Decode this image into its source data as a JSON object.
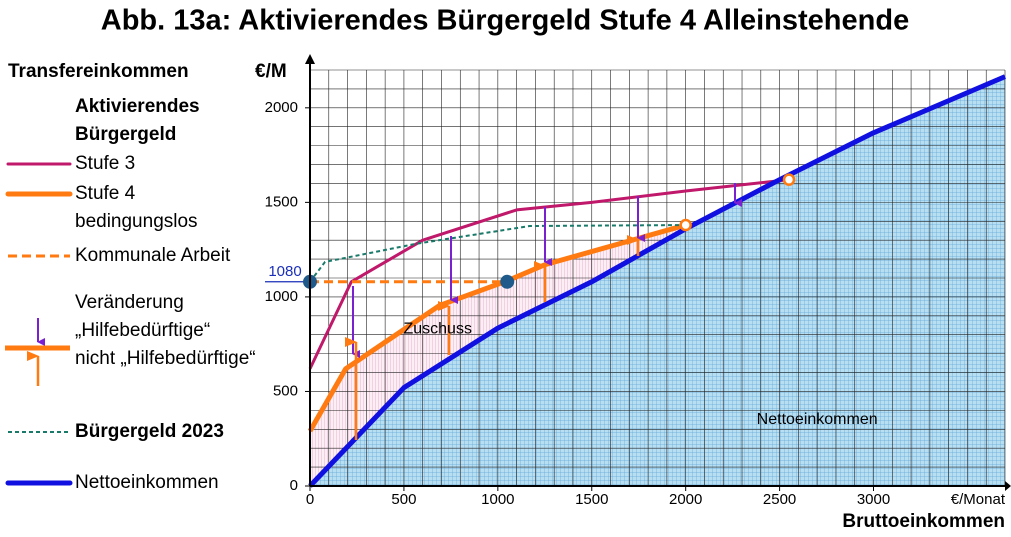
{
  "chart_data": {
    "type": "line",
    "title": "Abb. 13a:  Aktivierendes Bürgergeld Stufe 4   Alleinstehende",
    "y_label": "Transfereinkommen",
    "y_unit": "€/M",
    "x_label": "Bruttoeinkommen",
    "x_unit": "€/Monat",
    "legend_title": "Aktivierendes\nBürgergeld",
    "change_legend": "Veränderung\n„Hilfebedürftige“\nnicht „Hilfebedürftige“",
    "xlim": [
      0,
      3700
    ],
    "ylim": [
      0,
      2200
    ],
    "xticks": [
      0,
      500,
      1000,
      1500,
      2000,
      2500,
      3000
    ],
    "yticks": [
      0,
      500,
      1000,
      1500,
      2000
    ],
    "grid": true,
    "grid_step": 100,
    "reference_line": {
      "value": 1080,
      "label": "1080",
      "color": "#1a2fb8"
    },
    "series": [
      {
        "name": "Stufe 3",
        "color": "#c0186a",
        "line_width": 3,
        "dash": null,
        "x": [
          0,
          220,
          600,
          1100,
          1500,
          2000,
          2550
        ],
        "values": [
          620,
          1080,
          1300,
          1460,
          1500,
          1560,
          1620
        ]
      },
      {
        "name": "Stufe 4\nbedingungslos",
        "color": "#ff7a10",
        "line_width": 5,
        "dash": null,
        "x": [
          0,
          190,
          690,
          1050,
          1250,
          2000
        ],
        "values": [
          290,
          620,
          955,
          1085,
          1170,
          1380
        ]
      },
      {
        "name": "Kommunale Arbeit",
        "color": "#ff7a10",
        "line_width": 3,
        "dash": "dashed",
        "x": [
          0,
          1050
        ],
        "values": [
          1080,
          1080
        ]
      },
      {
        "name": "Bürgergeld 2023",
        "color": "#1a7a6a",
        "line_width": 2,
        "dash": "dotted",
        "legend_bold": true,
        "x": [
          0,
          80,
          560,
          1170,
          2000
        ],
        "values": [
          1080,
          1185,
          1280,
          1375,
          1380
        ]
      },
      {
        "name": "Nettoeinkommen",
        "color": "#1010e0",
        "line_width": 5,
        "dash": null,
        "fill": true,
        "x": [
          0,
          500,
          1000,
          1500,
          2000,
          2500,
          3000,
          3700
        ],
        "values": [
          0,
          520,
          835,
          1080,
          1360,
          1620,
          1868,
          2165
        ]
      }
    ],
    "markers": [
      {
        "color": "#1f5a8a",
        "open": false,
        "x": [
          0,
          1050
        ],
        "values": [
          1080,
          1080
        ]
      },
      {
        "color": "#ff7a10",
        "open": true,
        "x": [
          2000,
          2550
        ],
        "values": [
          1380,
          1620
        ]
      }
    ],
    "annotations": [
      {
        "text": "Zuschuss",
        "x": 680,
        "y": 830
      },
      {
        "text": "Nettoeinkommen",
        "x": 2700,
        "y": 350
      }
    ]
  }
}
